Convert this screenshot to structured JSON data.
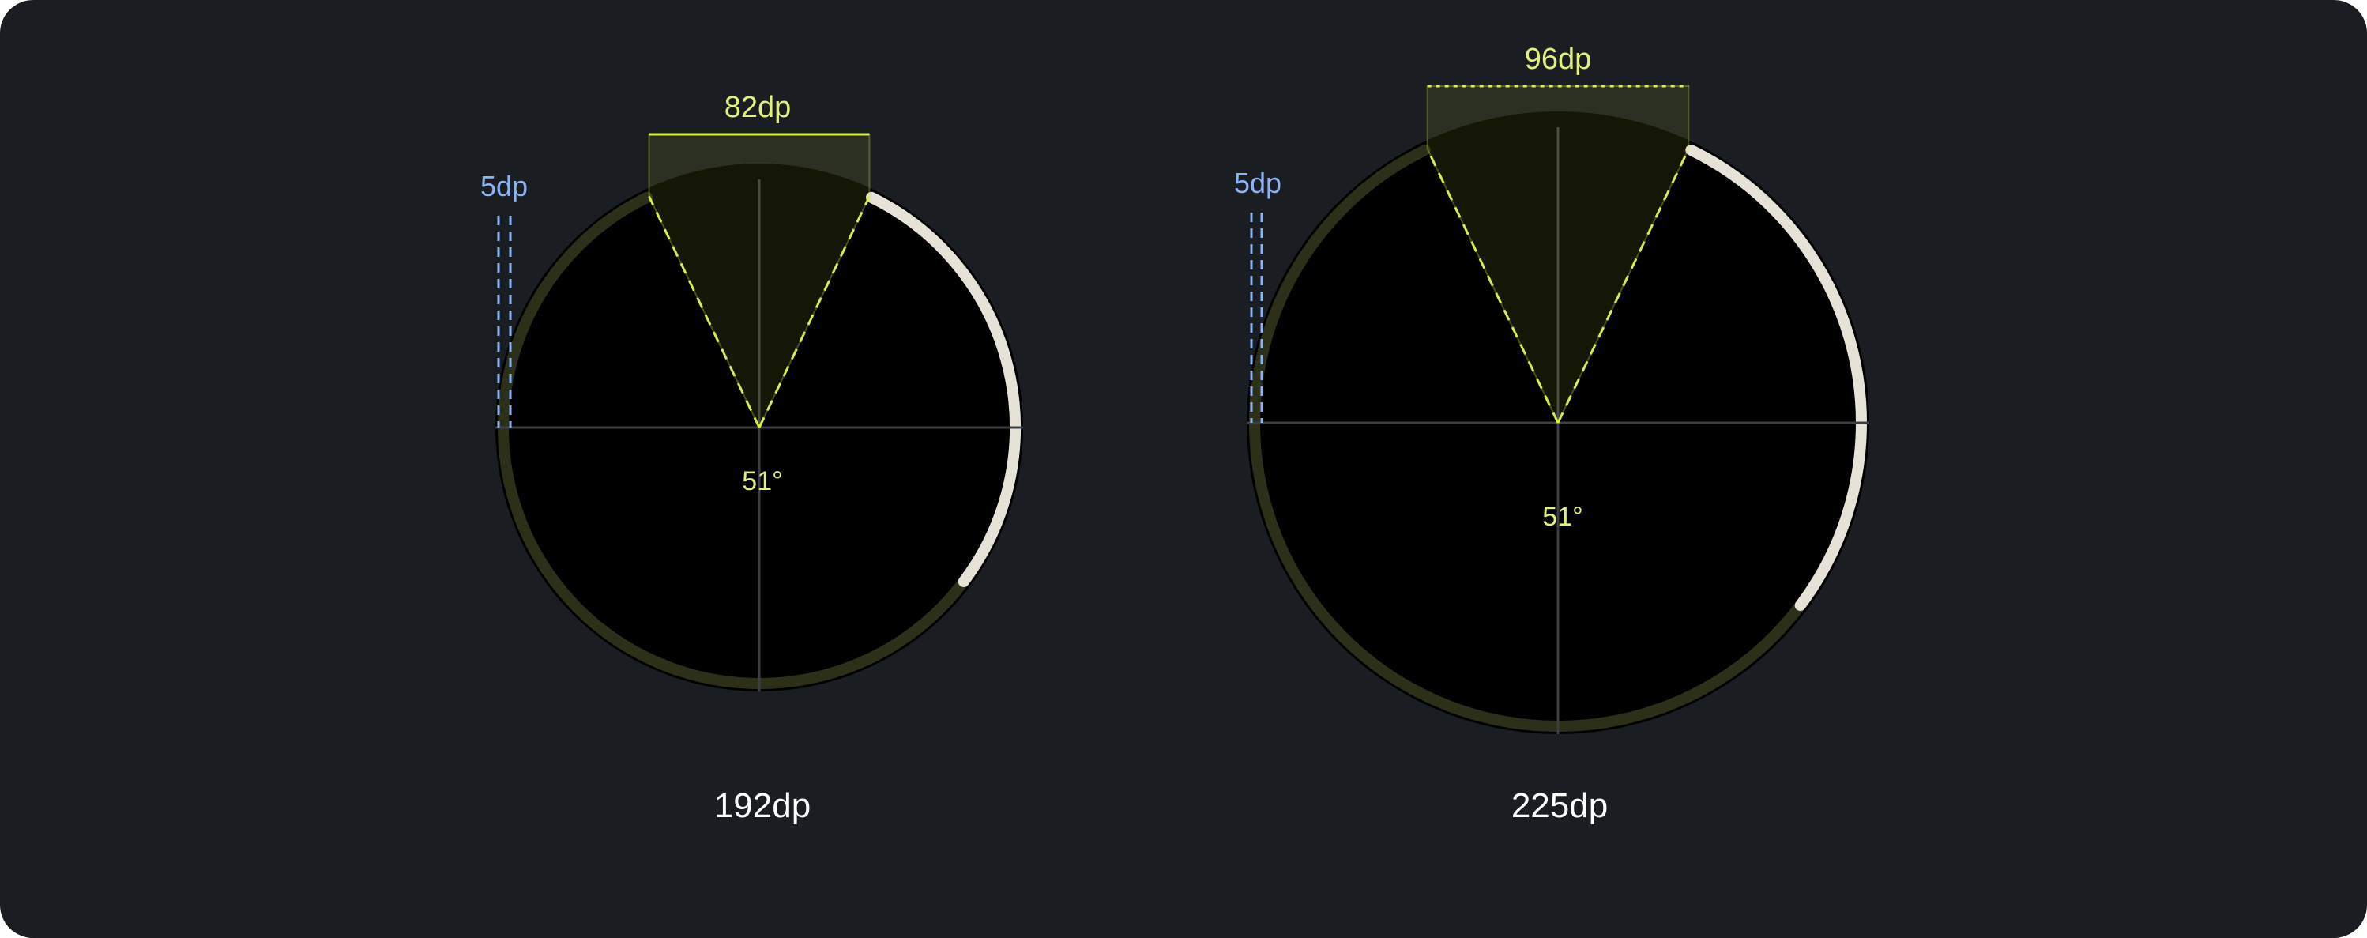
{
  "colors": {
    "background": "#1a1d21",
    "track": "#2d3018",
    "indicator": "#e6e2d8",
    "accent_yellow": "#d8ec4a",
    "label_yellow": "#e0f07a",
    "margin_blue": "#8ab4f8",
    "crosshair": "#3c3f42"
  },
  "diagrams": [
    {
      "size_label": "192dp",
      "gap_width_label": "82dp",
      "margin_label": "5dp",
      "angle_label": "51°",
      "gap_bracket_style": "solid"
    },
    {
      "size_label": "225dp",
      "gap_width_label": "96dp",
      "margin_label": "5dp",
      "angle_label": "51°",
      "gap_bracket_style": "dotted"
    }
  ]
}
